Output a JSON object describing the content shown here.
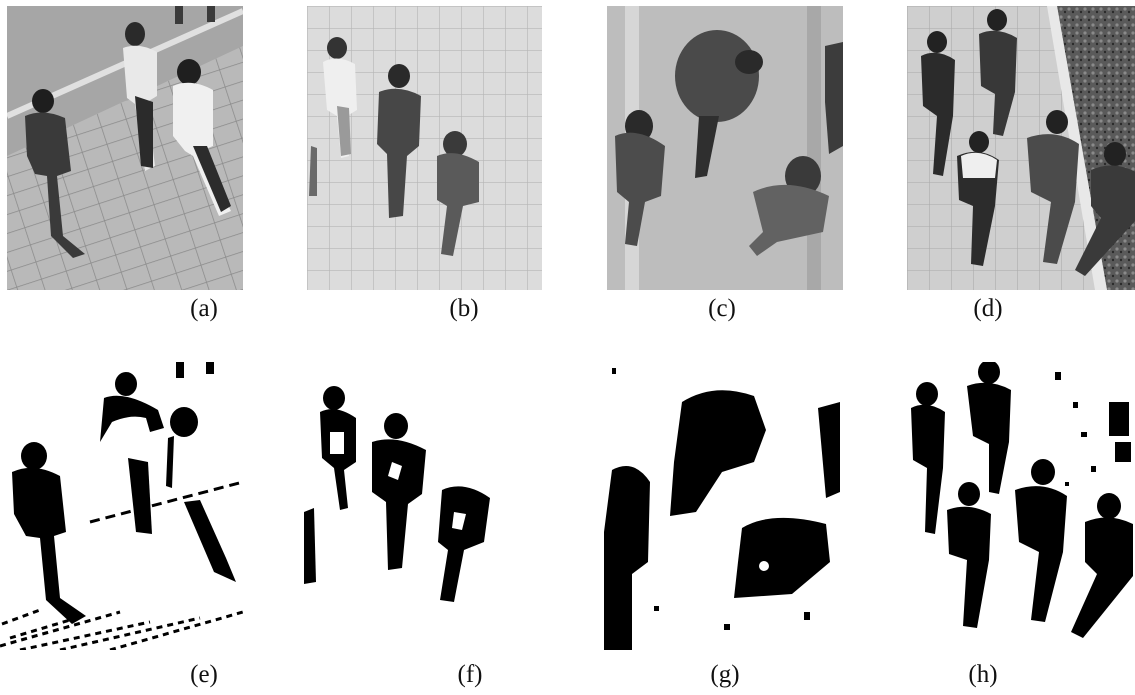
{
  "captions": {
    "a": "(a)",
    "b": "(b)",
    "c": "(c)",
    "d": "(d)",
    "e": "(e)",
    "f": "(f)",
    "g": "(g)",
    "h": "(h)"
  },
  "colors": {
    "photo_light": "#d8d8d8",
    "photo_mid": "#a9a9a9",
    "photo_dark": "#3a3a3a",
    "mask_fg": "#000000",
    "mask_bg": "#ffffff"
  }
}
